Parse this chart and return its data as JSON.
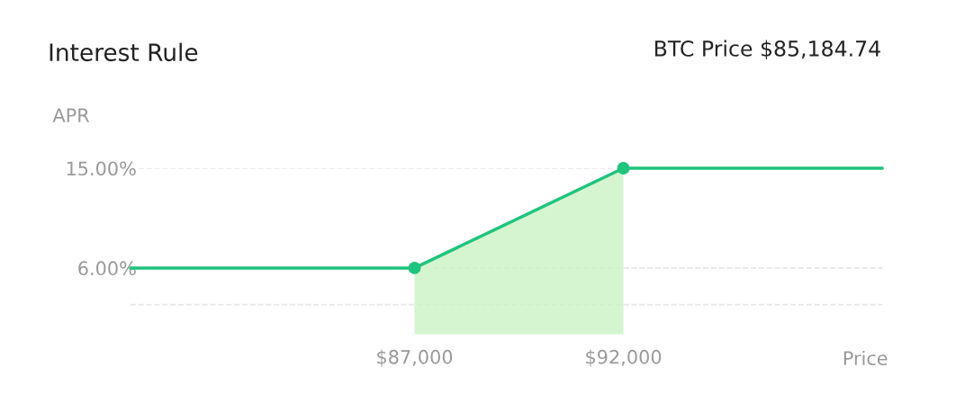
{
  "chart_data": {
    "type": "line",
    "title": "Interest Rule",
    "subtitle": "BTC Price $85,184.74",
    "xlabel": "Price",
    "ylabel": "APR",
    "series": [
      {
        "color": "#1fc47d",
        "x": [
          80200,
          87000,
          92000,
          98200
        ],
        "values": [
          6,
          6,
          15,
          15
        ]
      },
      {
        "type": "area",
        "color": "#c9f2c4",
        "x": [
          87000,
          92000
        ],
        "values": [
          6,
          15
        ]
      },
      {
        "type": "scatter",
        "marker": "circle",
        "color": "#1fc47d",
        "x": [
          87000,
          92000
        ],
        "values": [
          6,
          15
        ]
      }
    ],
    "xlim": [
      80200,
      98200
    ],
    "ylim": [
      0,
      15
    ],
    "xticks": [
      {
        "value": 87000,
        "label": "$87,000"
      },
      {
        "value": 92000,
        "label": "$92,000"
      }
    ],
    "yticks": [
      {
        "value": 15,
        "label": "15.00%"
      },
      {
        "value": 6,
        "label": "6.00%"
      },
      {
        "value": 2.7,
        "label": null
      }
    ],
    "grid": "y",
    "legend": false
  }
}
